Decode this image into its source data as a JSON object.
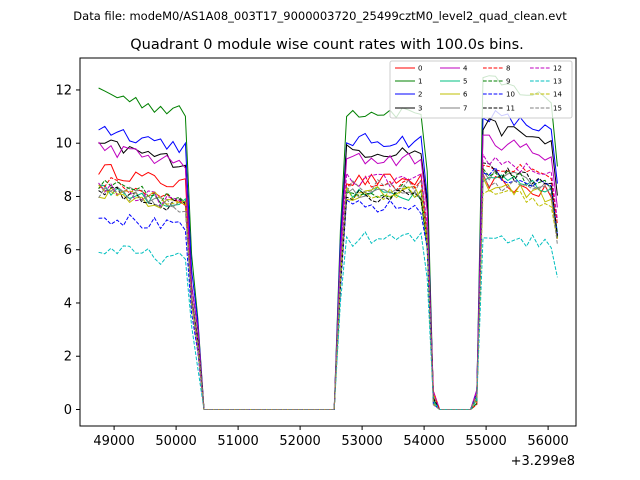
{
  "chart_data": {
    "type": "line",
    "suptitle": "Data file: modeM0/AS1A08_003T17_9000003720_25499cztM0_level2_quad_clean.evt",
    "title": "Quadrant 0 module wise count rates with 100.0s bins.",
    "xlabel": "",
    "ylabel": "",
    "x_offset_text": "+3.299e8",
    "xlim": [
      48450,
      56450
    ],
    "ylim": [
      -0.62,
      13.2
    ],
    "xticks": [
      49000,
      50000,
      51000,
      52000,
      53000,
      54000,
      55000,
      56000
    ],
    "yticks": [
      0,
      2,
      4,
      6,
      8,
      10,
      12
    ],
    "grid": false,
    "legend_position": "top-right",
    "segments": [
      {
        "start": 48750,
        "end": 50250
      },
      {
        "start": 50350,
        "end": 52550
      },
      {
        "start": 52650,
        "end": 54050
      },
      {
        "start": 54150,
        "end": 54850
      },
      {
        "start": 54950,
        "end": 56150
      }
    ],
    "series": [
      {
        "name": "0",
        "color": "#ff0000",
        "dash": "solid",
        "levels": [
          8.7,
          8.6,
          8.2
        ]
      },
      {
        "name": "1",
        "color": "#008000",
        "dash": "solid",
        "levels": [
          11.5,
          11.2,
          11.8
        ]
      },
      {
        "name": "2",
        "color": "#0000ff",
        "dash": "solid",
        "levels": [
          10.2,
          10.1,
          10.6
        ]
      },
      {
        "name": "3",
        "color": "#000000",
        "dash": "solid",
        "levels": [
          9.6,
          9.7,
          10.2
        ]
      },
      {
        "name": "4",
        "color": "#bf00bf",
        "dash": "solid",
        "levels": [
          9.5,
          9.4,
          9.7
        ]
      },
      {
        "name": "5",
        "color": "#00bf80",
        "dash": "solid",
        "levels": [
          8.0,
          8.1,
          8.4
        ]
      },
      {
        "name": "6",
        "color": "#bfbf00",
        "dash": "solid",
        "levels": [
          7.9,
          8.1,
          8.1
        ]
      },
      {
        "name": "7",
        "color": "#808080",
        "dash": "solid",
        "levels": [
          8.0,
          8.2,
          8.5
        ]
      },
      {
        "name": "8",
        "color": "#ff0000",
        "dash": "dashed",
        "levels": [
          8.2,
          8.5,
          8.8
        ]
      },
      {
        "name": "9",
        "color": "#008000",
        "dash": "dashed",
        "levels": [
          8.1,
          8.2,
          8.6
        ]
      },
      {
        "name": "10",
        "color": "#0000ff",
        "dash": "dashed",
        "levels": [
          7.0,
          7.6,
          8.5
        ]
      },
      {
        "name": "11",
        "color": "#000000",
        "dash": "dashed",
        "levels": [
          7.9,
          8.0,
          8.6
        ]
      },
      {
        "name": "12",
        "color": "#bf00bf",
        "dash": "dashed",
        "levels": [
          8.0,
          8.6,
          9.0
        ]
      },
      {
        "name": "13",
        "color": "#00bfbf",
        "dash": "dashed",
        "levels": [
          5.8,
          6.4,
          6.3
        ]
      },
      {
        "name": "14",
        "color": "#bfbf00",
        "dash": "dashed",
        "levels": [
          8.1,
          8.1,
          7.9
        ]
      },
      {
        "name": "15",
        "color": "#808080",
        "dash": "dashed",
        "levels": [
          7.9,
          8.4,
          8.2
        ]
      }
    ]
  }
}
